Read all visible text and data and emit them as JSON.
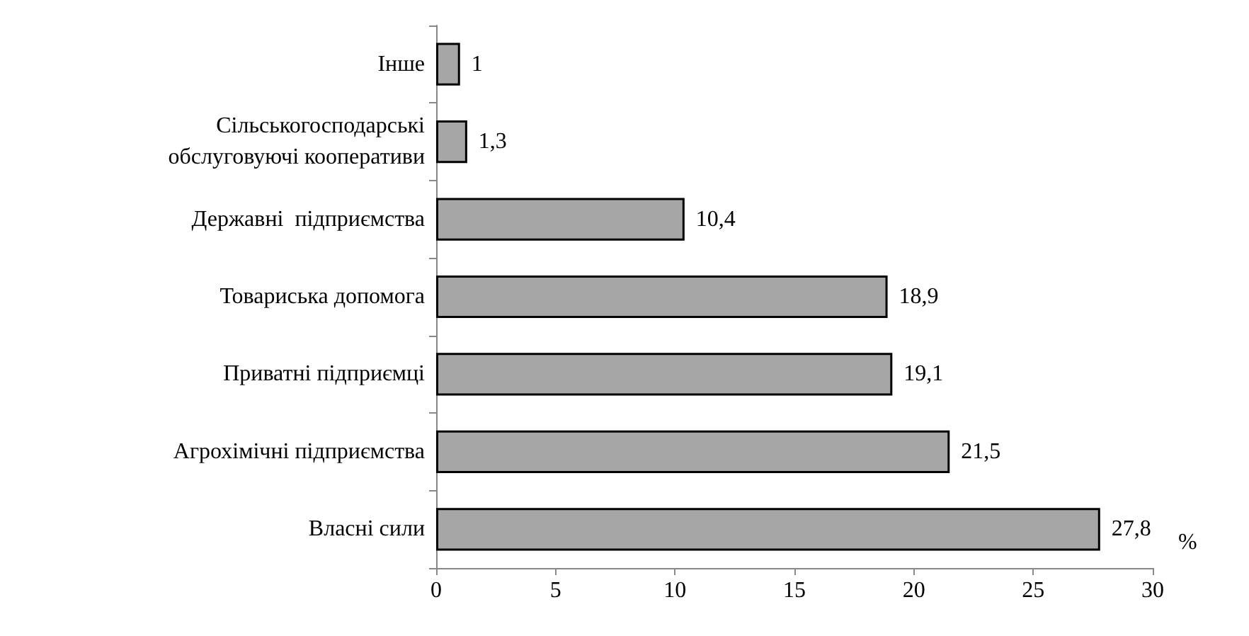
{
  "chart_data": {
    "type": "bar",
    "orientation": "horizontal",
    "xlabel": "%",
    "categories": [
      "Інше",
      "Сільськогосподарські обслуговуючі кооперативи",
      "Державні  підприємства",
      "Товариська допомога",
      "Приватні підприємці",
      "Агрохімічні підприємства",
      "Власні сили"
    ],
    "values": [
      1,
      1.3,
      10.4,
      18.9,
      19.1,
      21.5,
      27.8
    ],
    "value_labels": [
      "1",
      "1,3",
      "10,4",
      "18,9",
      "19,1",
      "21,5",
      "27,8"
    ],
    "color": "#a6a6a6",
    "xlim": [
      0,
      30
    ],
    "xticks": [
      0,
      5,
      10,
      15,
      20,
      25,
      30
    ],
    "grid": false
  }
}
